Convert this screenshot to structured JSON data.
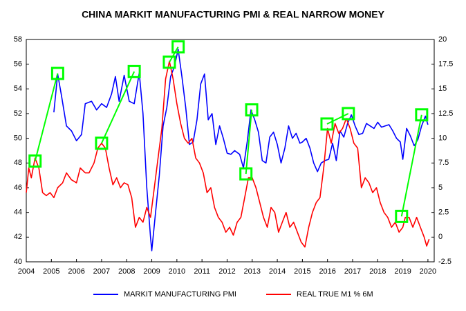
{
  "chart_data": {
    "type": "line",
    "title": "CHINA MARKIT MANUFACTURING PMI & REAL NARROW MONEY",
    "xlim": [
      2004,
      2020.25
    ],
    "xticks": [
      2004,
      2005,
      2006,
      2007,
      2008,
      2009,
      2010,
      2011,
      2012,
      2013,
      2014,
      2015,
      2016,
      2017,
      2018,
      2019,
      2020
    ],
    "ylim": [
      40,
      58
    ],
    "yticks": [
      40,
      42,
      44,
      46,
      48,
      50,
      52,
      54,
      56,
      58
    ],
    "y2lim": [
      -2.5,
      20
    ],
    "y2ticks": [
      -2.5,
      0,
      2.5,
      5,
      7.5,
      10,
      12.5,
      15,
      17.5,
      20
    ],
    "series": [
      {
        "name": "MARKIT MANUFACTURING PMI",
        "color": "#0000ff",
        "axis": "y",
        "x": [
          2005.1,
          2005.25,
          2005.4,
          2005.6,
          2005.8,
          2006.0,
          2006.2,
          2006.35,
          2006.6,
          2006.8,
          2007.0,
          2007.2,
          2007.4,
          2007.55,
          2007.7,
          2007.9,
          2008.1,
          2008.3,
          2008.5,
          2008.65,
          2008.8,
          2008.95,
          2009.0,
          2009.15,
          2009.3,
          2009.45,
          2009.6,
          2009.75,
          2009.9,
          2010.05,
          2010.2,
          2010.35,
          2010.5,
          2010.65,
          2010.8,
          2010.95,
          2011.1,
          2011.25,
          2011.4,
          2011.55,
          2011.7,
          2011.85,
          2012.0,
          2012.15,
          2012.3,
          2012.5,
          2012.65,
          2012.8,
          2012.95,
          2013.1,
          2013.25,
          2013.4,
          2013.55,
          2013.7,
          2013.85,
          2014.0,
          2014.15,
          2014.3,
          2014.45,
          2014.6,
          2014.75,
          2014.9,
          2015.0,
          2015.15,
          2015.3,
          2015.45,
          2015.6,
          2015.75,
          2015.9,
          2016.05,
          2016.2,
          2016.35,
          2016.5,
          2016.65,
          2016.8,
          2016.95,
          2017.1,
          2017.25,
          2017.4,
          2017.55,
          2017.7,
          2017.85,
          2018.0,
          2018.15,
          2018.3,
          2018.45,
          2018.6,
          2018.75,
          2018.9,
          2019.0,
          2019.15,
          2019.3,
          2019.45,
          2019.6,
          2019.75,
          2019.9,
          2020.0
        ],
        "values": [
          52.1,
          55.2,
          53.5,
          51.0,
          50.6,
          49.8,
          50.3,
          52.8,
          53.0,
          52.3,
          52.8,
          52.5,
          53.6,
          55.0,
          53.0,
          55.1,
          53.0,
          52.8,
          55.3,
          52.0,
          46.0,
          42.0,
          40.9,
          44.0,
          47.0,
          51.0,
          52.5,
          55.0,
          55.8,
          57.2,
          55.0,
          52.5,
          49.5,
          49.7,
          51.5,
          54.4,
          55.2,
          51.5,
          52.0,
          49.5,
          51.0,
          50.0,
          48.8,
          48.7,
          49.0,
          48.7,
          47.6,
          49.7,
          52.3,
          51.5,
          50.5,
          48.2,
          48.0,
          50.1,
          50.5,
          49.5,
          48.0,
          49.2,
          51.0,
          50.0,
          50.4,
          49.6,
          49.7,
          50.0,
          49.2,
          48.0,
          47.3,
          48.0,
          48.2,
          48.3,
          49.6,
          48.2,
          50.6,
          50.1,
          51.2,
          51.9,
          51.0,
          50.3,
          50.4,
          51.2,
          51.0,
          50.8,
          51.3,
          50.9,
          51.0,
          51.1,
          50.6,
          50.0,
          49.7,
          48.3,
          50.8,
          50.2,
          49.4,
          49.9,
          51.0,
          51.8,
          51.1
        ]
      },
      {
        "name": "REAL TRUE M1 % 6M",
        "color": "#ff0000",
        "axis": "y2",
        "x": [
          2004.0,
          2004.1,
          2004.2,
          2004.35,
          2004.5,
          2004.65,
          2004.8,
          2004.95,
          2005.1,
          2005.25,
          2005.45,
          2005.6,
          2005.8,
          2006.0,
          2006.15,
          2006.35,
          2006.5,
          2006.7,
          2006.85,
          2007.0,
          2007.15,
          2007.3,
          2007.45,
          2007.6,
          2007.75,
          2007.9,
          2008.05,
          2008.2,
          2008.35,
          2008.5,
          2008.65,
          2008.8,
          2008.95,
          2009.1,
          2009.25,
          2009.4,
          2009.55,
          2009.7,
          2009.85,
          2010.0,
          2010.15,
          2010.3,
          2010.45,
          2010.6,
          2010.75,
          2010.9,
          2011.05,
          2011.2,
          2011.35,
          2011.5,
          2011.65,
          2011.8,
          2011.95,
          2012.1,
          2012.25,
          2012.4,
          2012.55,
          2012.7,
          2012.85,
          2013.0,
          2013.15,
          2013.3,
          2013.45,
          2013.6,
          2013.75,
          2013.9,
          2014.05,
          2014.2,
          2014.35,
          2014.5,
          2014.65,
          2014.8,
          2014.95,
          2015.1,
          2015.25,
          2015.4,
          2015.55,
          2015.7,
          2015.85,
          2016.0,
          2016.15,
          2016.3,
          2016.45,
          2016.6,
          2016.75,
          2016.9,
          2017.05,
          2017.2,
          2017.35,
          2017.5,
          2017.65,
          2017.8,
          2017.95,
          2018.1,
          2018.25,
          2018.4,
          2018.55,
          2018.7,
          2018.85,
          2019.0,
          2019.1,
          2019.25,
          2019.4,
          2019.55,
          2019.7,
          2019.85,
          2019.95,
          2020.05
        ],
        "values": [
          4.5,
          7.0,
          6.0,
          8.0,
          7.0,
          4.5,
          4.2,
          4.5,
          4.0,
          5.0,
          5.5,
          6.5,
          5.8,
          5.5,
          7.0,
          6.5,
          6.5,
          7.5,
          9.0,
          9.5,
          9.0,
          7.0,
          5.3,
          6.0,
          5.0,
          5.5,
          5.3,
          4.0,
          1.0,
          2.0,
          1.5,
          3.0,
          2.0,
          5.0,
          8.0,
          11.0,
          16.0,
          17.8,
          16.0,
          13.5,
          11.5,
          10.0,
          9.5,
          10.0,
          8.0,
          7.5,
          6.5,
          4.5,
          5.0,
          3.0,
          2.0,
          1.5,
          0.5,
          1.0,
          0.2,
          1.5,
          2.0,
          4.0,
          6.0,
          6.0,
          5.0,
          3.5,
          2.0,
          1.0,
          3.0,
          2.5,
          0.5,
          1.5,
          2.5,
          1.0,
          1.5,
          0.5,
          -0.5,
          -1.0,
          1.0,
          2.5,
          3.5,
          4.0,
          7.0,
          11.0,
          9.5,
          11.5,
          10.5,
          11.0,
          12.0,
          11.0,
          9.5,
          9.0,
          5.0,
          6.0,
          5.5,
          4.5,
          5.0,
          3.5,
          2.5,
          2.0,
          1.0,
          1.5,
          0.5,
          1.0,
          2.0,
          2.0,
          1.0,
          2.0,
          1.0,
          0.0,
          -0.9,
          -0.2
        ]
      }
    ],
    "links": {
      "color": "#00ff00",
      "m1_x": [
        2004.35,
        2007.0,
        2009.7,
        2012.75,
        2015.98,
        2018.95
      ],
      "m1": [
        7.7,
        9.5,
        17.7,
        6.4,
        11.45,
        2.1
      ],
      "pmi_x": [
        2005.25,
        2008.3,
        2010.05,
        2012.98,
        2016.83,
        2019.75
      ],
      "pmi": [
        55.25,
        55.4,
        57.4,
        52.3,
        52.0,
        51.9
      ]
    }
  }
}
